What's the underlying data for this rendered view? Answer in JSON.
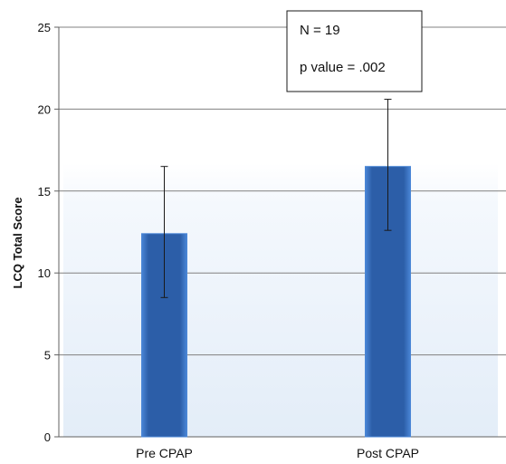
{
  "chart_data": {
    "type": "bar",
    "categories": [
      "Pre CPAP",
      "Post CPAP"
    ],
    "values": [
      12.4,
      16.5
    ],
    "error_bars": [
      {
        "low": 8.5,
        "high": 16.5
      },
      {
        "low": 12.6,
        "high": 20.6
      }
    ],
    "title": "",
    "xlabel": "",
    "ylabel": "LCQ Total Score",
    "ylim": [
      0,
      25
    ],
    "yticks": [
      0,
      5,
      10,
      15,
      20,
      25
    ],
    "grid": true,
    "legend": "none",
    "annotations": [
      "N = 19",
      "p value = .002"
    ],
    "bar_color": "#2f62ad",
    "bar_edge_color": "#4a86d6"
  }
}
